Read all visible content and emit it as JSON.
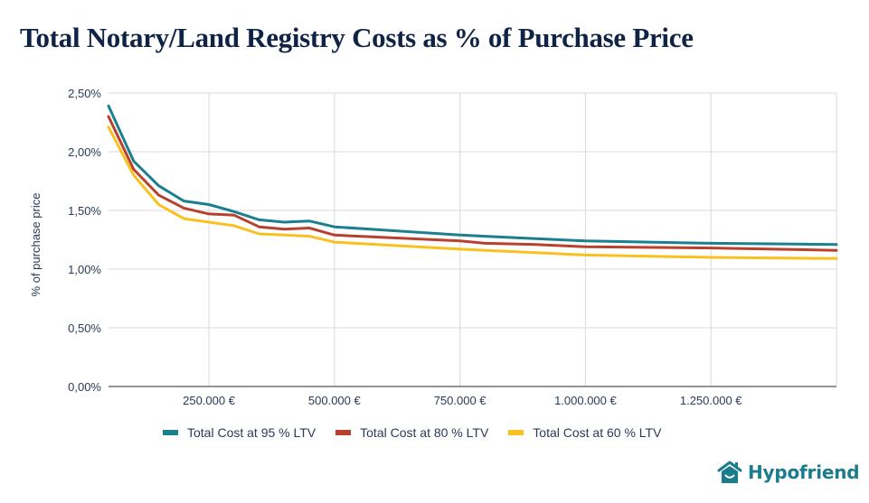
{
  "title": "Total Notary/Land Registry Costs as % of Purchase Price",
  "brand": {
    "name": "Hypofriend",
    "icon": "house-smile-icon",
    "color": "#1b7c8c"
  },
  "chart_data": {
    "type": "line",
    "title": "Total Notary/Land Registry Costs as % of Purchase Price",
    "xlabel": "",
    "ylabel": "% of purchase price",
    "x": [
      50000,
      100000,
      150000,
      200000,
      250000,
      300000,
      350000,
      400000,
      450000,
      500000,
      750000,
      800000,
      900000,
      1000000,
      1250000,
      1500000
    ],
    "xlim": [
      50000,
      1500000
    ],
    "ylim": [
      0,
      2.5
    ],
    "x_ticks": [
      250000,
      500000,
      750000,
      1000000,
      1250000
    ],
    "x_tick_labels": [
      "250.000 €",
      "500.000 €",
      "750.000 €",
      "1.000.000 €",
      "1.250.000 €"
    ],
    "y_ticks": [
      0,
      0.5,
      1.0,
      1.5,
      2.0,
      2.5
    ],
    "y_tick_labels": [
      "0,00%",
      "0,50%",
      "1,00%",
      "1,50%",
      "2,00%",
      "2,50%"
    ],
    "grid": true,
    "legend_position": "bottom",
    "series": [
      {
        "name": "Total Cost at 95 % LTV",
        "color": "#1a7f8e",
        "values": [
          2.39,
          1.92,
          1.71,
          1.58,
          1.55,
          1.49,
          1.42,
          1.4,
          1.41,
          1.36,
          1.29,
          1.28,
          1.26,
          1.24,
          1.22,
          1.21
        ]
      },
      {
        "name": "Total Cost at 80 % LTV",
        "color": "#b8412e",
        "values": [
          2.3,
          1.85,
          1.63,
          1.52,
          1.47,
          1.46,
          1.36,
          1.34,
          1.35,
          1.29,
          1.24,
          1.22,
          1.21,
          1.19,
          1.18,
          1.16
        ]
      },
      {
        "name": "Total Cost at 60 % LTV",
        "color": "#f8c11f",
        "values": [
          2.21,
          1.8,
          1.55,
          1.43,
          1.4,
          1.37,
          1.3,
          1.29,
          1.28,
          1.23,
          1.17,
          1.16,
          1.14,
          1.12,
          1.1,
          1.09
        ]
      }
    ]
  }
}
